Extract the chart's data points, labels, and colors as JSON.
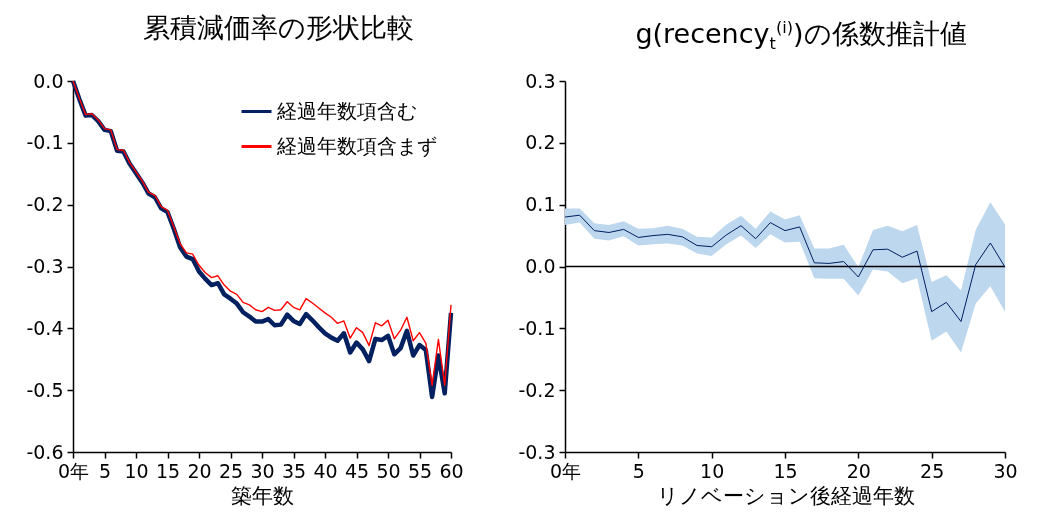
{
  "chart_data": [
    {
      "type": "line",
      "title": "累積減価率の形状比較",
      "xlabel": "築年数",
      "x": [
        0,
        1,
        2,
        3,
        4,
        5,
        6,
        7,
        8,
        9,
        10,
        11,
        12,
        13,
        14,
        15,
        16,
        17,
        18,
        19,
        20,
        21,
        22,
        23,
        24,
        25,
        26,
        27,
        28,
        29,
        30,
        31,
        32,
        33,
        34,
        35,
        36,
        37,
        38,
        39,
        40,
        41,
        42,
        43,
        44,
        45,
        46,
        47,
        48,
        49,
        50,
        51,
        52,
        53,
        54,
        55,
        56,
        57,
        58,
        59,
        60
      ],
      "xlim": [
        0,
        60
      ],
      "xticks": [
        {
          "value": 0,
          "label": "0年"
        },
        5,
        10,
        15,
        20,
        25,
        30,
        35,
        40,
        45,
        50,
        55,
        60
      ],
      "ylim": [
        -0.6,
        0
      ],
      "yticks": [
        {
          "value": -0.6,
          "label": "-0.6"
        },
        {
          "value": -0.5,
          "label": "-0.5"
        },
        {
          "value": -0.4,
          "label": "-0.4"
        },
        {
          "value": -0.3,
          "label": "-0.3"
        },
        {
          "value": -0.2,
          "label": "-0.2"
        },
        {
          "value": -0.1,
          "label": "-0.1"
        },
        {
          "value": 0,
          "label": "0.0"
        }
      ],
      "series": [
        {
          "name": "経過年数項含む",
          "color": "#002060",
          "values": [
            0,
            -0.029,
            -0.056,
            -0.055,
            -0.065,
            -0.079,
            -0.081,
            -0.113,
            -0.114,
            -0.134,
            -0.149,
            -0.164,
            -0.182,
            -0.188,
            -0.206,
            -0.212,
            -0.239,
            -0.269,
            -0.284,
            -0.288,
            -0.308,
            -0.32,
            -0.33,
            -0.327,
            -0.345,
            -0.352,
            -0.36,
            -0.374,
            -0.381,
            -0.389,
            -0.389,
            -0.385,
            -0.395,
            -0.394,
            -0.378,
            -0.388,
            -0.393,
            -0.377,
            -0.387,
            -0.398,
            -0.408,
            -0.415,
            -0.42,
            -0.408,
            -0.439,
            -0.423,
            -0.434,
            -0.453,
            -0.417,
            -0.419,
            -0.412,
            -0.442,
            -0.432,
            -0.404,
            -0.444,
            -0.427,
            -0.435,
            -0.511,
            -0.444,
            -0.505,
            -0.375
          ]
        },
        {
          "name": "経過年数項含まず",
          "color": "#ff0000",
          "values": [
            0,
            -0.028,
            -0.054,
            -0.053,
            -0.063,
            -0.077,
            -0.079,
            -0.111,
            -0.112,
            -0.132,
            -0.147,
            -0.162,
            -0.18,
            -0.185,
            -0.203,
            -0.209,
            -0.236,
            -0.263,
            -0.278,
            -0.28,
            -0.298,
            -0.31,
            -0.318,
            -0.315,
            -0.33,
            -0.34,
            -0.345,
            -0.358,
            -0.362,
            -0.37,
            -0.373,
            -0.366,
            -0.371,
            -0.37,
            -0.357,
            -0.366,
            -0.37,
            -0.352,
            -0.359,
            -0.367,
            -0.375,
            -0.382,
            -0.392,
            -0.388,
            -0.416,
            -0.399,
            -0.407,
            -0.428,
            -0.391,
            -0.396,
            -0.387,
            -0.417,
            -0.403,
            -0.382,
            -0.42,
            -0.407,
            -0.424,
            -0.492,
            -0.418,
            -0.492,
            -0.362
          ]
        }
      ],
      "legend": "top right",
      "grid": false
    },
    {
      "type": "line",
      "title": "g(recency$_{t}$$^{(i)}$)の係数推計値",
      "xlabel": "リノベーション後経過年数",
      "x": [
        0,
        1,
        2,
        3,
        4,
        5,
        6,
        7,
        8,
        9,
        10,
        11,
        12,
        13,
        14,
        15,
        16,
        17,
        18,
        19,
        20,
        21,
        22,
        23,
        24,
        25,
        26,
        27,
        28,
        29,
        30
      ],
      "xlim": [
        0,
        30
      ],
      "xticks": [
        {
          "value": 0,
          "label": "0年"
        },
        5,
        10,
        15,
        20,
        25,
        30
      ],
      "ylim": [
        -0.3,
        0.3
      ],
      "yticks": [
        {
          "value": -0.3,
          "label": "-0.3"
        },
        {
          "value": -0.2,
          "label": "-0.2"
        },
        {
          "value": -0.1,
          "label": "-0.1"
        },
        {
          "value": 0,
          "label": "0.0"
        },
        0.1,
        0.2,
        0.3
      ],
      "series": [
        {
          "color": "#002060",
          "values": [
            0.08,
            0.083,
            0.058,
            0.055,
            0.06,
            0.047,
            0.05,
            0.052,
            0.048,
            0.034,
            0.032,
            0.051,
            0.066,
            0.045,
            0.071,
            0.058,
            0.064,
            0.006,
            0.005,
            0.008,
            -0.017,
            0.027,
            0.028,
            0.015,
            0.025,
            -0.073,
            -0.058,
            -0.089,
            0.003,
            0.038,
            -0.001
          ],
          "upper": [
            0.094,
            0.094,
            0.07,
            0.067,
            0.073,
            0.061,
            0.062,
            0.066,
            0.061,
            0.048,
            0.047,
            0.068,
            0.082,
            0.061,
            0.089,
            0.076,
            0.083,
            0.029,
            0.029,
            0.035,
            -0.001,
            0.059,
            0.066,
            0.057,
            0.067,
            -0.025,
            -0.014,
            -0.039,
            0.059,
            0.104,
            0.068
          ],
          "lower": [
            0.067,
            0.071,
            0.045,
            0.042,
            0.049,
            0.034,
            0.036,
            0.037,
            0.034,
            0.021,
            0.017,
            0.036,
            0.05,
            0.03,
            0.052,
            0.039,
            0.04,
            -0.019,
            -0.02,
            -0.02,
            -0.047,
            -0.005,
            -0.008,
            -0.027,
            -0.019,
            -0.12,
            -0.105,
            -0.139,
            -0.06,
            -0.032,
            -0.073
          ]
        }
      ],
      "ref_lines": [
        {
          "axis": "y",
          "value": 0,
          "color": "#000000"
        }
      ],
      "legend": false,
      "grid": false
    }
  ]
}
